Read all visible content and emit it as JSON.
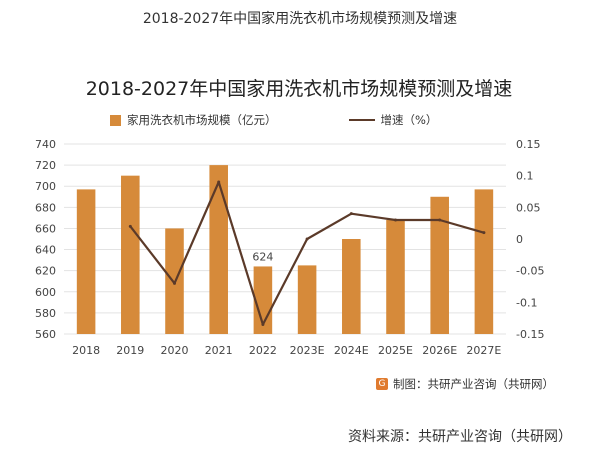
{
  "page_title": "2018-2027年中国家用洗衣机市场规模预测及增速",
  "chart_credit": "制图：共研产业咨询（共研网）",
  "source": "资料来源：共研产业咨询（共研网）",
  "chart_data": {
    "type": "bar",
    "title": "2018-2027年中国家用洗衣机市场规模预测及增速",
    "categories": [
      "2018",
      "2019",
      "2020",
      "2021",
      "2022",
      "2023E",
      "2024E",
      "2025E",
      "2026E",
      "2027E"
    ],
    "series": [
      {
        "name": "家用洗衣机市场规模（亿元）",
        "type": "bar",
        "axis": "left",
        "color": "#D68A3A",
        "values": [
          697,
          710,
          660,
          720,
          624,
          625,
          650,
          668,
          690,
          697
        ]
      },
      {
        "name": "增速（%）",
        "type": "line",
        "axis": "right",
        "color": "#5B3A29",
        "values": [
          null,
          0.02,
          -0.07,
          0.09,
          -0.135,
          0.0,
          0.04,
          0.03,
          0.03,
          0.01
        ]
      }
    ],
    "data_labels": [
      {
        "category": "2022",
        "text": "624"
      }
    ],
    "y_left": {
      "ylim": [
        560,
        740
      ],
      "ticks": [
        "560",
        "580",
        "600",
        "620",
        "640",
        "660",
        "680",
        "700",
        "720",
        "740"
      ]
    },
    "y_right": {
      "ylim": [
        -0.15,
        0.15
      ],
      "ticks": [
        "-0.15",
        "-0.1",
        "-0.05",
        "0",
        "0.05",
        "0.1",
        "0.15"
      ]
    },
    "grid": true,
    "legend_position": "top"
  }
}
